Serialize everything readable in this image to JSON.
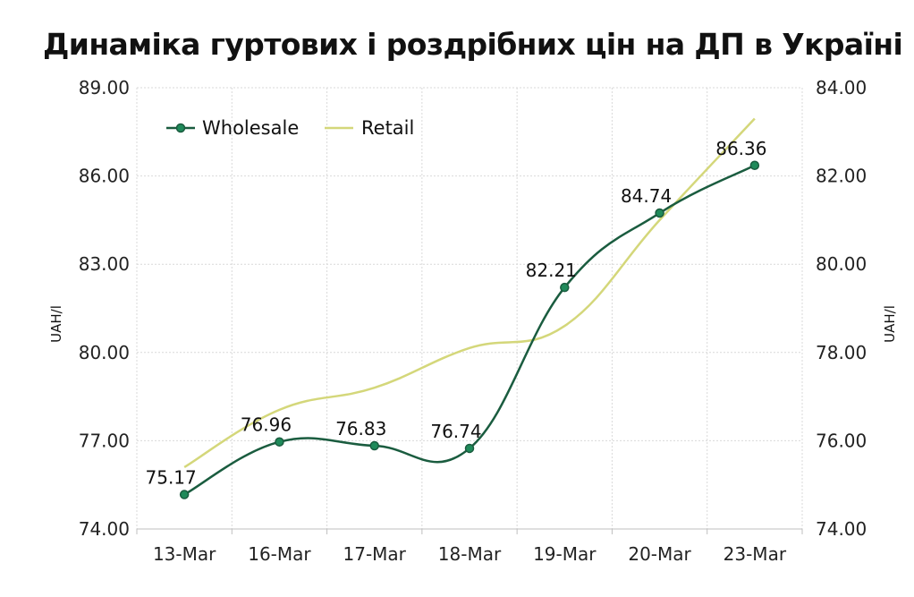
{
  "chart_data": {
    "type": "line",
    "title": "Динаміка гуртових і роздрібних цін на ДП в Україні",
    "categories": [
      "13-Mar",
      "16-Mar",
      "17-Mar",
      "18-Mar",
      "19-Mar",
      "20-Mar",
      "23-Mar"
    ],
    "ylabel": "UAH/l",
    "y2label": "UAH/l",
    "ylim": [
      74,
      89
    ],
    "y2lim": [
      74,
      84
    ],
    "yticks": [
      "74.00",
      "77.00",
      "80.00",
      "83.00",
      "86.00",
      "89.00"
    ],
    "y2ticks": [
      "74.00",
      "76.00",
      "78.00",
      "80.00",
      "82.00",
      "84.00"
    ],
    "grid": true,
    "legend_position": "top-left",
    "series": [
      {
        "name": "Wholesale",
        "axis": "left",
        "color": "#1a5c3f",
        "markers": true,
        "values": [
          75.17,
          76.96,
          76.83,
          76.74,
          82.21,
          84.74,
          86.36
        ],
        "labels": [
          "75.17",
          "76.96",
          "76.83",
          "76.74",
          "82.21",
          "84.74",
          "86.36"
        ]
      },
      {
        "name": "Retail",
        "axis": "right",
        "color": "#d4d77a",
        "markers": false,
        "values": [
          75.4,
          76.7,
          77.2,
          78.1,
          78.6,
          81.0,
          83.3
        ]
      }
    ]
  }
}
